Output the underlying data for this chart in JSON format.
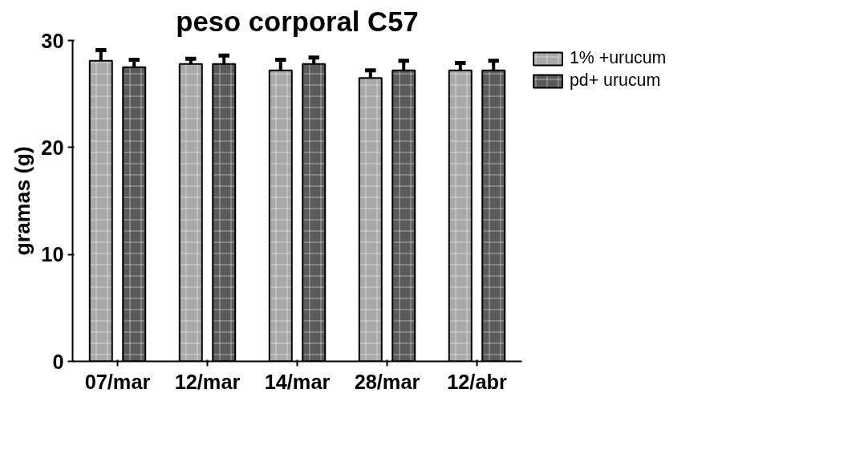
{
  "chart_data": {
    "type": "bar",
    "title": "peso corporal C57",
    "ylabel": "gramas (g)",
    "categories": [
      "07/mar",
      "12/mar",
      "14/mar",
      "28/mar",
      "12/abr"
    ],
    "series": [
      {
        "name": "1% +urucum",
        "color": "#a8a8a8",
        "values": [
          28.1,
          27.8,
          27.2,
          26.5,
          27.2
        ],
        "errors": [
          1.0,
          0.5,
          1.0,
          0.7,
          0.7
        ]
      },
      {
        "name": "pd+ urucum",
        "color": "#5a5a5a",
        "values": [
          27.5,
          27.8,
          27.8,
          27.2,
          27.2
        ],
        "errors": [
          0.7,
          0.8,
          0.6,
          0.9,
          0.9
        ]
      }
    ],
    "ylim": [
      0,
      30
    ],
    "yticks": [
      0,
      10,
      20,
      30
    ],
    "grid": false,
    "legend": "top right"
  }
}
